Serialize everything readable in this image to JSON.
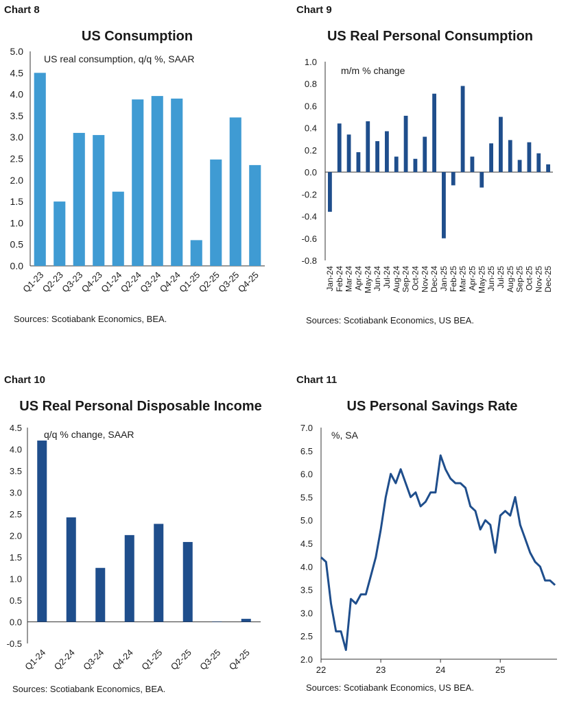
{
  "chart_data": [
    {
      "label": "Chart 8",
      "type": "bar",
      "title": "US Consumption",
      "subtitle": "US real consumption, q/q %, SAAR",
      "source": "Sources: Scotiabank Economics, BEA.",
      "categories": [
        "Q1-23",
        "Q2-23",
        "Q3-23",
        "Q4-23",
        "Q1-24",
        "Q2-24",
        "Q3-24",
        "Q4-24",
        "Q1-25",
        "Q2-25",
        "Q3-25",
        "Q4-25"
      ],
      "values": [
        4.5,
        1.5,
        3.1,
        3.05,
        1.73,
        3.88,
        3.96,
        3.9,
        0.6,
        2.48,
        3.46,
        2.35
      ],
      "ylim": [
        0,
        5
      ],
      "yticks": [
        "0.0",
        "0.5",
        "1.0",
        "1.5",
        "2.0",
        "2.5",
        "3.0",
        "3.5",
        "4.0",
        "4.5",
        "5.0"
      ],
      "color": "#3f9bd3"
    },
    {
      "label": "Chart 9",
      "type": "bar",
      "title": "US Real Personal Consumption",
      "subtitle": "m/m % change",
      "source": "Sources: Scotiabank Economics, US BEA.",
      "categories": [
        "Jan-24",
        "Feb-24",
        "Mar-24",
        "Apr-24",
        "May-24",
        "Jun-24",
        "Jul-24",
        "Aug-24",
        "Sep-24",
        "Oct-24",
        "Nov-24",
        "Dec-24",
        "Jan-25",
        "Feb-25",
        "Mar-25",
        "Apr-25",
        "May-25",
        "Jun-25",
        "Jul-25",
        "Aug-25",
        "Sep-25",
        "Oct-25",
        "Nov-25",
        "Dec-25"
      ],
      "values": [
        -0.36,
        0.44,
        0.34,
        0.18,
        0.46,
        0.28,
        0.37,
        0.14,
        0.51,
        0.12,
        0.32,
        0.71,
        -0.6,
        -0.12,
        0.78,
        0.14,
        -0.14,
        0.26,
        0.5,
        0.29,
        0.11,
        0.27,
        0.17,
        0.07
      ],
      "ylim": [
        -0.8,
        1.0
      ],
      "yticks": [
        "-0.8",
        "-0.6",
        "-0.4",
        "-0.2",
        "0.0",
        "0.2",
        "0.4",
        "0.6",
        "0.8",
        "1.0"
      ],
      "color": "#1f4e8c"
    },
    {
      "label": "Chart 10",
      "type": "bar",
      "title": "US Real Personal Disposable Income",
      "subtitle": "q/q % change, SAAR",
      "source": "Sources: Scotiabank Economics, BEA.",
      "categories": [
        "Q1-24",
        "Q2-24",
        "Q3-24",
        "Q4-24",
        "Q1-25",
        "Q2-25",
        "Q3-25",
        "Q4-25"
      ],
      "values": [
        4.2,
        2.42,
        1.25,
        2.01,
        2.27,
        1.85,
        0.01,
        0.07
      ],
      "ylim": [
        -0.5,
        4.5
      ],
      "yticks": [
        "-0.5",
        "0.0",
        "0.5",
        "1.0",
        "1.5",
        "2.0",
        "2.5",
        "3.0",
        "3.5",
        "4.0",
        "4.5"
      ],
      "color": "#1f4e8c"
    },
    {
      "label": "Chart 11",
      "type": "line",
      "title": "US Personal Savings Rate",
      "subtitle": "%, SA",
      "source": "Sources: Scotiabank Economics, US BEA.",
      "x_start": 2022.0,
      "x_step_months": 1,
      "values": [
        4.2,
        4.1,
        3.2,
        2.6,
        2.6,
        2.2,
        3.3,
        3.2,
        3.4,
        3.4,
        3.8,
        4.2,
        4.8,
        5.5,
        6.0,
        5.8,
        6.1,
        5.8,
        5.5,
        5.6,
        5.3,
        5.4,
        5.6,
        5.6,
        6.4,
        6.1,
        5.9,
        5.8,
        5.8,
        5.7,
        5.3,
        5.2,
        4.8,
        5.0,
        4.9,
        4.3,
        5.1,
        5.2,
        5.1,
        5.5,
        4.9,
        4.6,
        4.3,
        4.1,
        4.0,
        3.7,
        3.7,
        3.6
      ],
      "xticks": [
        "22",
        "23",
        "24",
        "25"
      ],
      "xtick_values": [
        2022,
        2023,
        2024,
        2025
      ],
      "xlim": [
        2022.0,
        2025.95
      ],
      "ylim": [
        2.0,
        7.0
      ],
      "yticks": [
        "2.0",
        "2.5",
        "3.0",
        "3.5",
        "4.0",
        "4.5",
        "5.0",
        "5.5",
        "6.0",
        "6.5",
        "7.0"
      ],
      "color": "#1f4e8c"
    }
  ]
}
